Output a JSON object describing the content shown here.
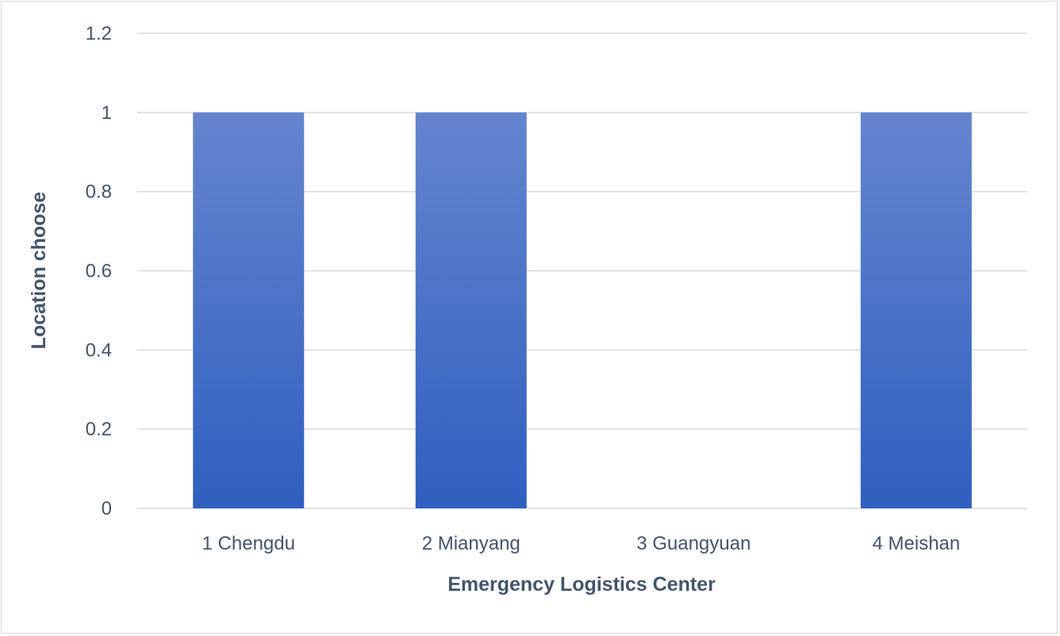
{
  "chart_data": {
    "type": "bar",
    "title": "",
    "xlabel": "Emergency Logistics Center",
    "ylabel": "Location choose",
    "categories": [
      "1 Chengdu",
      "2 Mianyang",
      "3 Guangyuan",
      "4 Meishan"
    ],
    "values": [
      1,
      1,
      0,
      1
    ],
    "ylim": [
      0,
      1.2
    ],
    "yticks": [
      "0",
      "0.2",
      "0.4",
      "0.6",
      "0.8",
      "1",
      "1.2"
    ],
    "grid": true,
    "legend": "none",
    "colors": {
      "bar_top": "#6585cf",
      "bar_bottom": "#2f5fbf",
      "grid": "#d9d9d9",
      "text": "#44546a"
    }
  }
}
